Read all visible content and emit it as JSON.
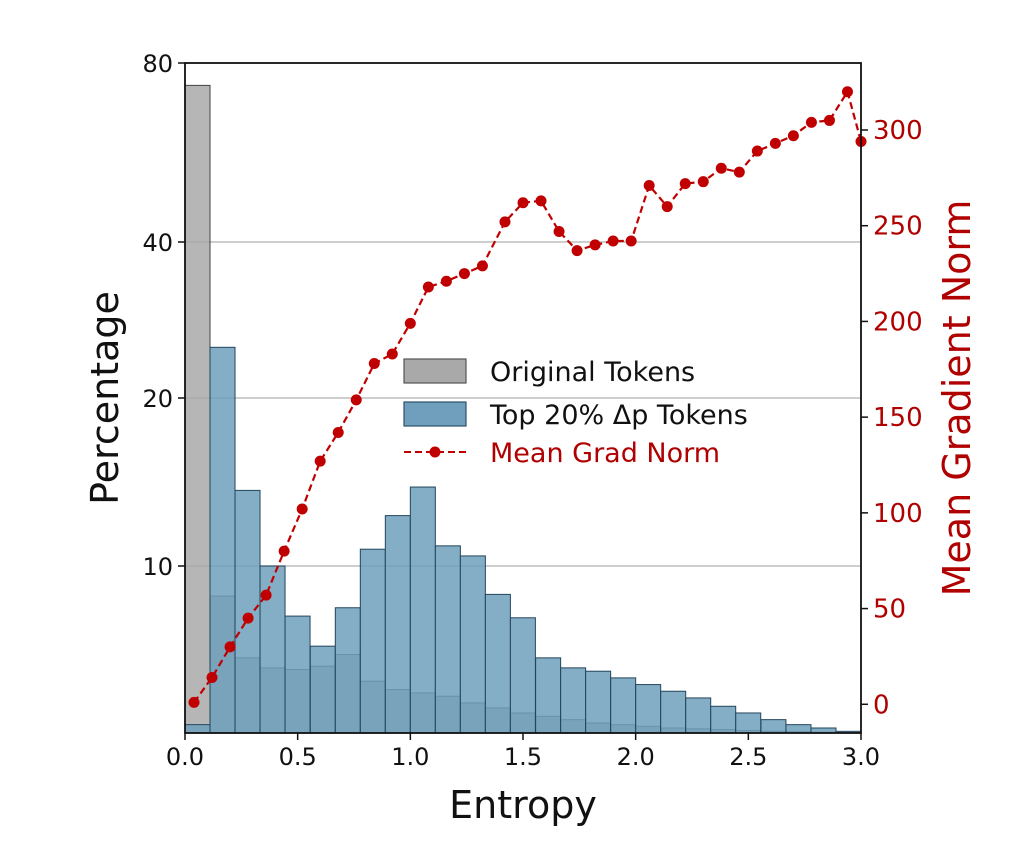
{
  "chart_data": {
    "type": "bar",
    "xlabel": "Entropy",
    "ylabel": "Percentage",
    "y2label": "Mean Gradient Norm",
    "xlim": [
      0.0,
      3.0
    ],
    "x_ticks": [
      "0.0",
      "0.5",
      "1.0",
      "1.5",
      "2.0",
      "2.5",
      "3.0"
    ],
    "ylim_left": [
      0,
      80
    ],
    "y_scale_left": "nonlinear (labelled ticks at 10, 20, 40, 80)",
    "y_ticks_left": [
      10,
      20,
      40,
      80
    ],
    "ylim_right": [
      -15,
      335
    ],
    "y_ticks_right": [
      0,
      50,
      100,
      150,
      200,
      250,
      300
    ],
    "bin_width": 0.111,
    "bin_starts": [
      0.0,
      0.111,
      0.222,
      0.333,
      0.444,
      0.556,
      0.667,
      0.778,
      0.889,
      1.0,
      1.111,
      1.222,
      1.333,
      1.444,
      1.556,
      1.667,
      1.778,
      1.889,
      2.0,
      2.111,
      2.222,
      2.333,
      2.444,
      2.556,
      2.667,
      2.778,
      2.889
    ],
    "legend_position": "center",
    "series": [
      {
        "name": "Original Tokens",
        "kind": "bar",
        "color": "#a9a9a9",
        "values": [
          75,
          8.2,
          4.5,
          3.9,
          3.8,
          4.0,
          4.7,
          3.1,
          2.6,
          2.4,
          2.2,
          1.8,
          1.5,
          1.2,
          1.0,
          0.8,
          0.6,
          0.5,
          0.4,
          0.3,
          0.25,
          0.2,
          0.15,
          0.1,
          0.08,
          0.05,
          0.03
        ]
      },
      {
        "name": "Top 20% Δp Tokens",
        "kind": "bar",
        "color": "#6f9fbc",
        "values": [
          0.5,
          26.5,
          14.5,
          10.0,
          7.0,
          5.2,
          7.5,
          11.0,
          13.0,
          14.7,
          11.2,
          10.6,
          8.3,
          6.9,
          4.5,
          3.9,
          3.7,
          3.3,
          2.9,
          2.5,
          2.1,
          1.6,
          1.2,
          0.8,
          0.5,
          0.3,
          0.1
        ]
      },
      {
        "name": "Mean Grad Norm",
        "kind": "line",
        "axis": "right",
        "color": "#c00000",
        "x": [
          0.04,
          0.12,
          0.2,
          0.28,
          0.36,
          0.44,
          0.52,
          0.6,
          0.68,
          0.76,
          0.84,
          0.92,
          1.0,
          1.08,
          1.16,
          1.24,
          1.32,
          1.42,
          1.5,
          1.58,
          1.66,
          1.74,
          1.82,
          1.9,
          1.98,
          2.06,
          2.14,
          2.22,
          2.3,
          2.38,
          2.46,
          2.54,
          2.62,
          2.7,
          2.78,
          2.86,
          2.94,
          3.0
        ],
        "values": [
          1,
          14,
          30,
          45,
          57,
          80,
          102,
          127,
          142,
          159,
          178,
          183,
          199,
          218,
          221,
          225,
          229,
          252,
          262,
          263,
          247,
          237,
          240,
          242,
          242,
          271,
          260,
          272,
          273,
          280,
          278,
          289,
          293,
          297,
          304,
          305,
          320,
          294
        ]
      }
    ]
  }
}
